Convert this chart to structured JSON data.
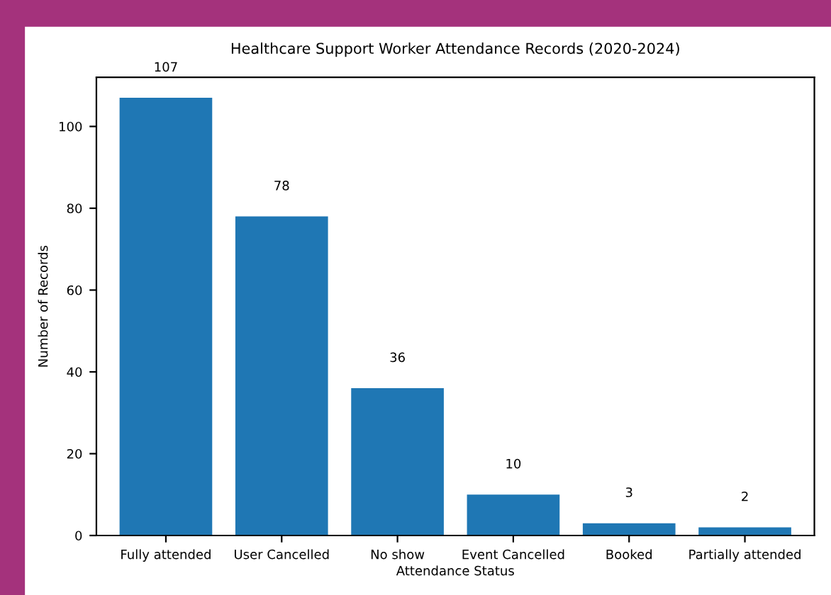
{
  "chart_data": {
    "type": "bar",
    "title": "Healthcare Support Worker Attendance Records (2020-2024)",
    "xlabel": "Attendance Status",
    "ylabel": "Number of Records",
    "categories": [
      "Fully attended",
      "User Cancelled",
      "No show",
      "Event Cancelled",
      "Booked",
      "Partially attended"
    ],
    "values": [
      107,
      78,
      36,
      10,
      3,
      2
    ],
    "color": "#1f77b4",
    "ylim": [
      0,
      112
    ],
    "yticks": [
      0,
      20,
      40,
      60,
      80,
      100
    ],
    "data_labels": true,
    "grid": false
  }
}
